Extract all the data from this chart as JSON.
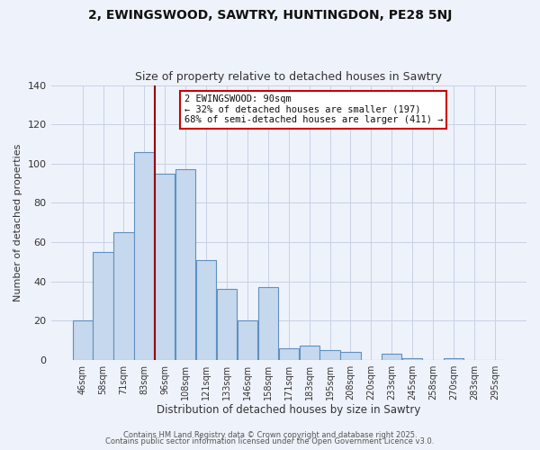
{
  "title": "2, EWINGSWOOD, SAWTRY, HUNTINGDON, PE28 5NJ",
  "subtitle": "Size of property relative to detached houses in Sawtry",
  "xlabel": "Distribution of detached houses by size in Sawtry",
  "ylabel": "Number of detached properties",
  "bar_labels": [
    "46sqm",
    "58sqm",
    "71sqm",
    "83sqm",
    "96sqm",
    "108sqm",
    "121sqm",
    "133sqm",
    "146sqm",
    "158sqm",
    "171sqm",
    "183sqm",
    "195sqm",
    "208sqm",
    "220sqm",
    "233sqm",
    "245sqm",
    "258sqm",
    "270sqm",
    "283sqm",
    "295sqm"
  ],
  "bar_values": [
    20,
    55,
    65,
    106,
    95,
    97,
    51,
    36,
    20,
    37,
    6,
    7,
    5,
    4,
    0,
    3,
    1,
    0,
    1,
    0,
    0
  ],
  "bar_color": "#c5d8ee",
  "bar_edgecolor": "#6090c0",
  "background_color": "#eef2fb",
  "grid_color": "#c8d0e4",
  "annotation_title": "2 EWINGSWOOD: 90sqm",
  "annotation_line1": "← 32% of detached houses are smaller (197)",
  "annotation_line2": "68% of semi-detached houses are larger (411) →",
  "marker_bin_index": 3,
  "marker_color": "#990000",
  "ylim": [
    0,
    140
  ],
  "yticks": [
    0,
    20,
    40,
    60,
    80,
    100,
    120,
    140
  ],
  "footer1": "Contains HM Land Registry data © Crown copyright and database right 2025.",
  "footer2": "Contains public sector information licensed under the Open Government Licence v3.0."
}
